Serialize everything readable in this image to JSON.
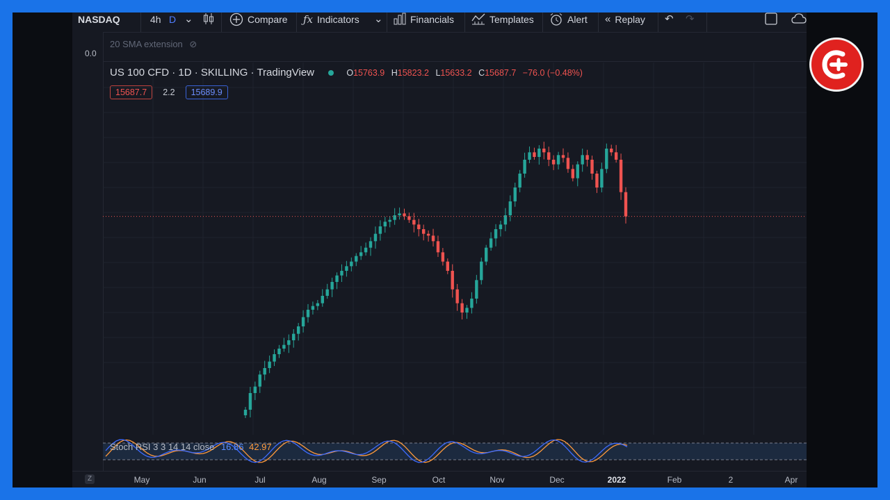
{
  "toolbar": {
    "symbol": "NASDAQ",
    "interval": "4h",
    "interval_selected": "D",
    "compare_label": "Compare",
    "indicators_label": "Indicators",
    "financials_label": "Financials",
    "templates_label": "Templates",
    "alert_label": "Alert",
    "replay_label": "Replay"
  },
  "overlay": {
    "sma_label": "20 SMA extension",
    "price_scale_top": "0.0"
  },
  "legend": {
    "title": "US 100 CFD · 1D · SKILLING · TradingView",
    "o_label": "O",
    "o_value": "15763.9",
    "h_label": "H",
    "h_value": "15823.2",
    "l_label": "L",
    "l_value": "15633.2",
    "c_label": "C",
    "c_value": "15687.7",
    "change": "−76.0 (−0.48%)",
    "sell_price": "15687.7",
    "spread": "2.2",
    "buy_price": "15689.9"
  },
  "stoch_rsi": {
    "label": "Stoch RSI 3 3 14 14 close",
    "k_value": "16.86",
    "d_value": "42.97"
  },
  "time_axis": {
    "ticks": [
      "May",
      "Jun",
      "Jul",
      "Aug",
      "Sep",
      "Oct",
      "Nov",
      "Dec",
      "2022",
      "Feb",
      "2",
      "Apr"
    ],
    "z_label": "Z"
  },
  "colors": {
    "up": "#26a69a",
    "down": "#ef5350",
    "background": "#161922",
    "frame": "#1a73e8",
    "logo": "#e0221f"
  },
  "chart_data": {
    "type": "candlestick",
    "symbol": "US 100 CFD",
    "timeframe": "1D",
    "months": [
      "May",
      "Jun",
      "Jul",
      "Aug",
      "Sep",
      "Oct",
      "Nov",
      "Dec",
      "2022",
      "Feb",
      "2",
      "Apr"
    ],
    "last_close": 15687.7,
    "closes": [
      13600,
      13780,
      13850,
      13980,
      14050,
      14120,
      14200,
      14260,
      14300,
      14350,
      14420,
      14500,
      14600,
      14680,
      14720,
      14750,
      14830,
      14900,
      14980,
      15050,
      15100,
      15150,
      15200,
      15260,
      15300,
      15350,
      15420,
      15500,
      15580,
      15630,
      15650,
      15700,
      15720,
      15690,
      15650,
      15600,
      15550,
      15500,
      15480,
      15420,
      15300,
      15200,
      15100,
      14900,
      14750,
      14650,
      14700,
      14800,
      15000,
      15200,
      15350,
      15450,
      15550,
      15600,
      15700,
      15850,
      16000,
      16150,
      16300,
      16380,
      16330,
      16420,
      16380,
      16300,
      16250,
      16350,
      16320,
      16200,
      16100,
      16250,
      16350,
      16300,
      16150,
      16000,
      16200,
      16420,
      16380,
      16300,
      15950,
      15687.7
    ]
  }
}
